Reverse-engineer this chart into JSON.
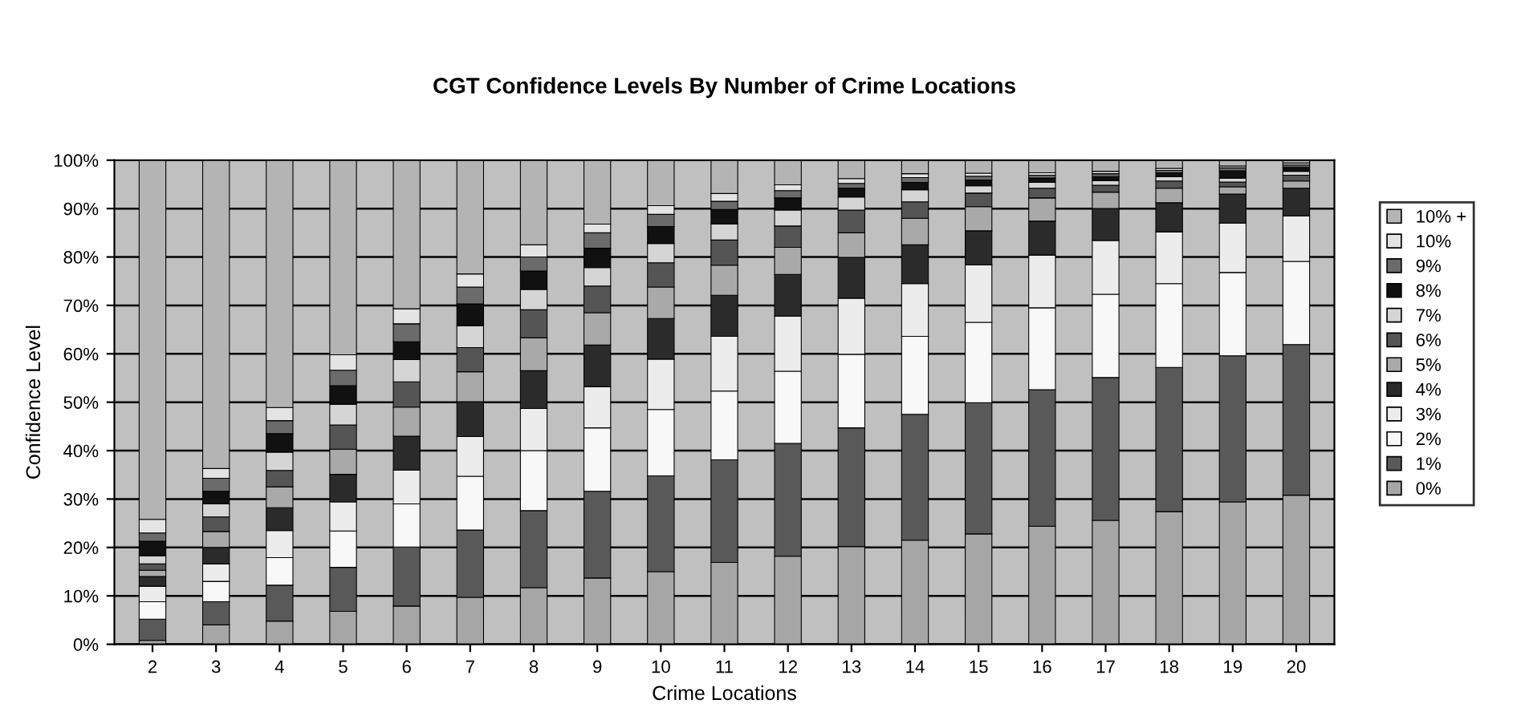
{
  "chart_data": {
    "type": "bar",
    "stacked": true,
    "title": "CGT Confidence Levels By Number of Crime Locations",
    "xlabel": "Crime Locations",
    "ylabel": "Confidence Level",
    "categories": [
      "2",
      "3",
      "4",
      "5",
      "6",
      "7",
      "8",
      "9",
      "10",
      "11",
      "12",
      "13",
      "14",
      "15",
      "16",
      "17",
      "18",
      "19",
      "20"
    ],
    "series": [
      {
        "name": "0%",
        "color": "#a6a6a6",
        "values": [
          0.8,
          4.0,
          4.8,
          6.8,
          7.9,
          9.7,
          11.7,
          13.7,
          15.0,
          16.9,
          18.2,
          20.2,
          21.5,
          22.8,
          24.4,
          25.6,
          27.4,
          29.4,
          30.8
        ]
      },
      {
        "name": "1%",
        "color": "#595959",
        "values": [
          4.4,
          4.8,
          7.4,
          9.1,
          12.2,
          13.9,
          15.9,
          17.9,
          19.8,
          21.2,
          23.3,
          24.5,
          26.0,
          27.1,
          28.2,
          29.5,
          29.8,
          30.2,
          31.1
        ]
      },
      {
        "name": "2%",
        "color": "#f8f8f8",
        "values": [
          3.6,
          4.2,
          5.7,
          7.5,
          8.9,
          11.1,
          12.4,
          13.1,
          13.7,
          14.2,
          14.9,
          15.2,
          16.1,
          16.6,
          16.9,
          17.2,
          17.3,
          17.2,
          17.2
        ]
      },
      {
        "name": "3%",
        "color": "#ececec",
        "values": [
          3.2,
          3.6,
          5.6,
          6.0,
          7.0,
          8.2,
          8.7,
          8.5,
          10.4,
          11.3,
          11.4,
          11.6,
          10.9,
          11.9,
          10.9,
          11.1,
          10.7,
          10.2,
          9.4
        ]
      },
      {
        "name": "4%",
        "color": "#2b2b2b",
        "values": [
          2.0,
          3.4,
          4.7,
          5.7,
          7.0,
          7.2,
          7.8,
          8.6,
          8.4,
          8.5,
          8.6,
          8.4,
          8.0,
          7.0,
          7.0,
          6.6,
          6.0,
          6.0,
          5.7
        ]
      },
      {
        "name": "5%",
        "color": "#a9a9a9",
        "values": [
          1.3,
          3.3,
          4.3,
          5.2,
          6.0,
          6.2,
          6.8,
          6.7,
          6.5,
          6.2,
          5.6,
          5.1,
          5.5,
          5.0,
          4.8,
          3.4,
          3.0,
          1.5,
          1.5
        ]
      },
      {
        "name": "6%",
        "color": "#555555",
        "values": [
          1.3,
          3.0,
          3.4,
          5.0,
          5.2,
          5.0,
          5.8,
          5.5,
          5.0,
          5.2,
          4.4,
          4.7,
          3.4,
          2.8,
          2.0,
          1.4,
          1.5,
          1.0,
          1.2
        ]
      },
      {
        "name": "7%",
        "color": "#d5d5d5",
        "values": [
          1.7,
          2.7,
          3.8,
          4.3,
          4.6,
          4.5,
          4.2,
          3.8,
          4.0,
          3.3,
          3.3,
          2.7,
          2.5,
          1.5,
          1.2,
          1.0,
          0.9,
          0.8,
          0.8
        ]
      },
      {
        "name": "8%",
        "color": "#111111",
        "values": [
          3.0,
          2.6,
          3.8,
          3.8,
          3.7,
          4.5,
          3.8,
          4.0,
          3.5,
          3.0,
          2.5,
          1.8,
          1.5,
          1.2,
          0.9,
          0.8,
          0.8,
          1.5,
          0.8
        ]
      },
      {
        "name": "9%",
        "color": "#6b6b6b",
        "values": [
          1.7,
          2.7,
          2.7,
          3.2,
          3.7,
          3.5,
          2.9,
          3.2,
          2.5,
          1.7,
          1.5,
          1.0,
          1.0,
          0.8,
          0.6,
          0.6,
          0.5,
          0.6,
          0.5
        ]
      },
      {
        "name": "10%",
        "color": "#e4e4e4",
        "values": [
          2.8,
          2.0,
          2.7,
          3.2,
          3.1,
          2.7,
          2.5,
          1.8,
          1.8,
          1.6,
          1.2,
          1.0,
          0.8,
          0.6,
          0.5,
          0.5,
          0.4,
          0.4,
          0.4
        ]
      },
      {
        "name": "10% +",
        "color": "#b4b4b4",
        "values": [
          74.4,
          64.0,
          51.3,
          40.4,
          30.9,
          23.5,
          17.6,
          13.3,
          9.5,
          7.1,
          5.1,
          3.8,
          2.8,
          2.7,
          2.6,
          2.3,
          1.7,
          1.2,
          0.6
        ]
      }
    ],
    "ylim": [
      0,
      100
    ],
    "yticks": [
      {
        "value": 0,
        "label": "0%"
      },
      {
        "value": 10,
        "label": "10%"
      },
      {
        "value": 20,
        "label": "20%"
      },
      {
        "value": 30,
        "label": "30%"
      },
      {
        "value": 40,
        "label": "40%"
      },
      {
        "value": 50,
        "label": "50%"
      },
      {
        "value": 60,
        "label": "60%"
      },
      {
        "value": 70,
        "label": "70%"
      },
      {
        "value": 80,
        "label": "80%"
      },
      {
        "value": 90,
        "label": "90%"
      },
      {
        "value": 100,
        "label": "100%"
      }
    ],
    "grid": "y",
    "legend": "right"
  }
}
